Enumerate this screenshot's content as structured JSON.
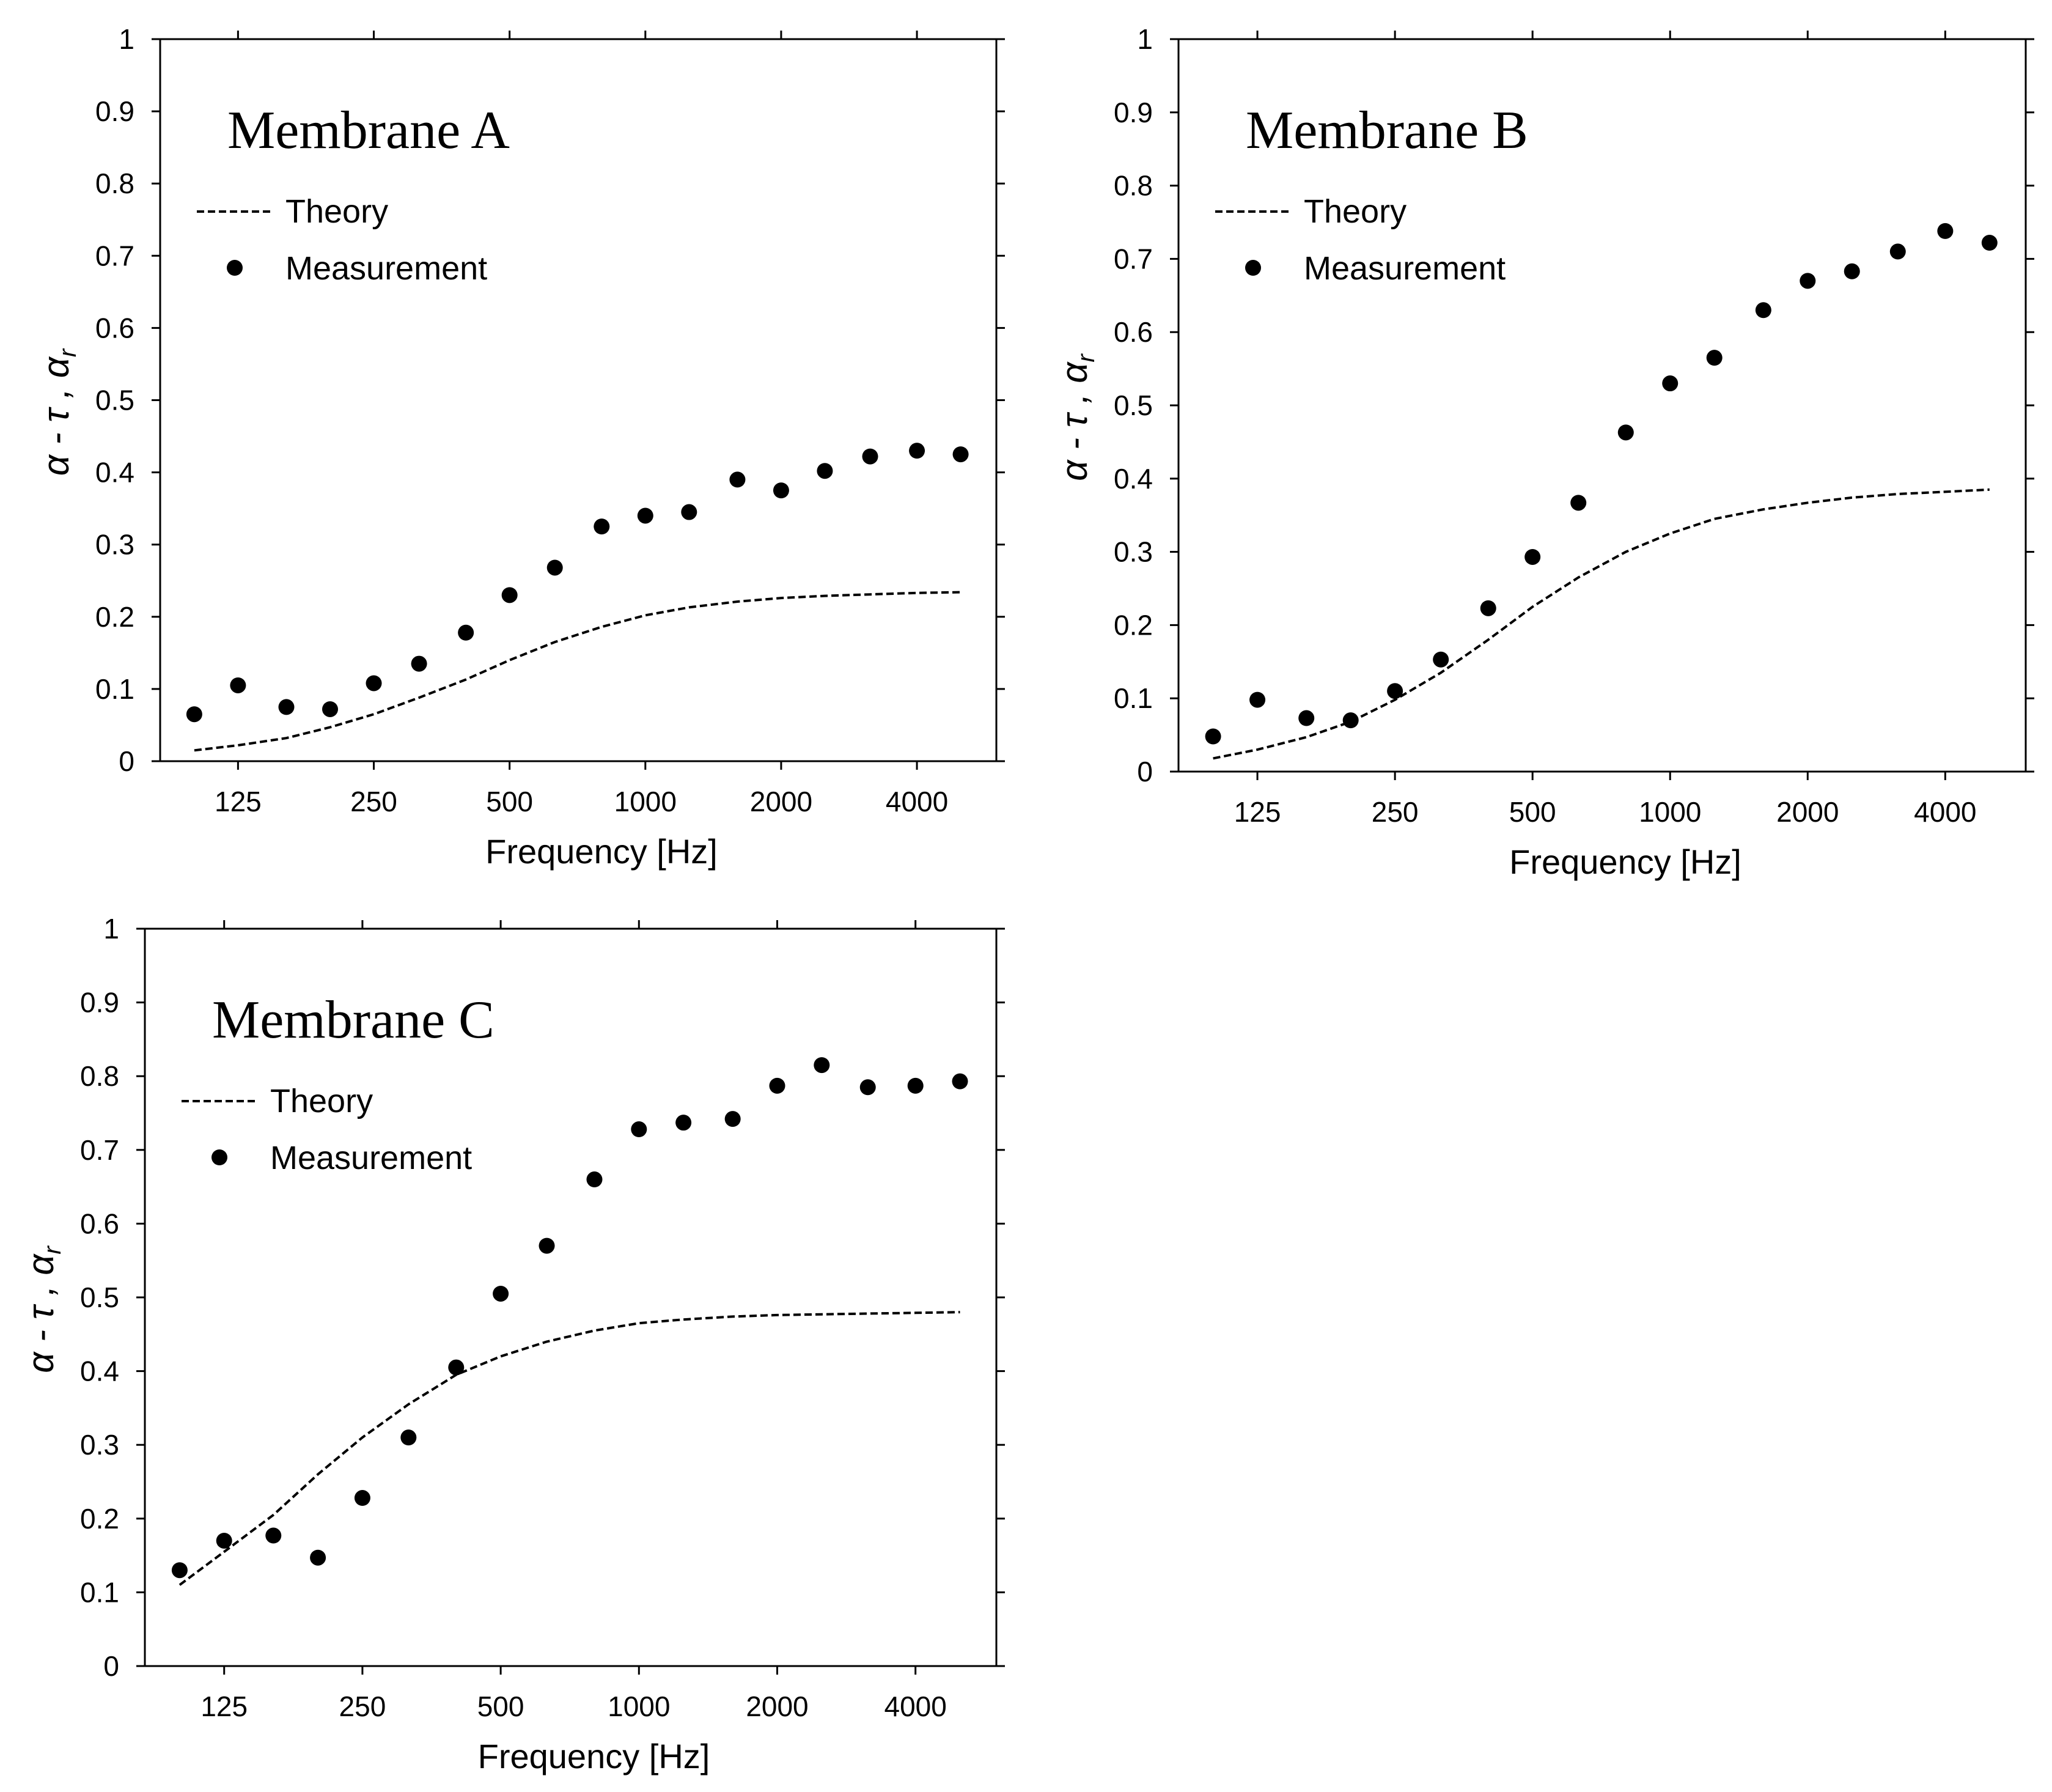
{
  "chart_data": [
    {
      "type": "scatter",
      "title": "Membrane A",
      "xlabel": "Frequency [Hz]",
      "ylabel": "α - τ , α_r",
      "x_scale": "log2",
      "x_ticks": [
        125,
        250,
        500,
        1000,
        2000,
        4000
      ],
      "x_tick_labels": [
        "125",
        "250",
        "500",
        "1000",
        "2000",
        "4000"
      ],
      "xlim": [
        84,
        6000
      ],
      "ylim": [
        0,
        1
      ],
      "y_ticks": [
        0,
        0.1,
        0.2,
        0.3,
        0.4,
        0.5,
        0.6,
        0.7,
        0.8,
        0.9,
        1
      ],
      "y_tick_labels": [
        "0",
        "0.1",
        "0.2",
        "0.3",
        "0.4",
        "0.5",
        "0.6",
        "0.7",
        "0.8",
        "0.9",
        "1"
      ],
      "legend": {
        "position": "upper-left",
        "theory_label": "Theory",
        "measurement_label": "Measurement"
      },
      "series": [
        {
          "name": "Theory",
          "style": "dashed-line",
          "x": [
            100,
            125,
            160,
            200,
            250,
            315,
            400,
            500,
            630,
            800,
            1000,
            1250,
            1600,
            2000,
            2500,
            3150,
            4000,
            5000
          ],
          "values": [
            0.015,
            0.022,
            0.032,
            0.047,
            0.065,
            0.088,
            0.113,
            0.14,
            0.165,
            0.186,
            0.202,
            0.213,
            0.221,
            0.226,
            0.229,
            0.231,
            0.233,
            0.234
          ]
        },
        {
          "name": "Measurement",
          "style": "filled-circles",
          "x": [
            100,
            125,
            160,
            200,
            250,
            315,
            400,
            500,
            630,
            800,
            1000,
            1250,
            1600,
            2000,
            2500,
            3150,
            4000,
            5000
          ],
          "values": [
            0.065,
            0.105,
            0.075,
            0.072,
            0.108,
            0.135,
            0.178,
            0.23,
            0.268,
            0.325,
            0.34,
            0.345,
            0.39,
            0.375,
            0.402,
            0.422,
            0.43,
            0.425
          ]
        }
      ]
    },
    {
      "type": "scatter",
      "title": "Membrane B",
      "xlabel": "Frequency [Hz]",
      "ylabel": "α - τ , α_r",
      "x_scale": "log2",
      "x_ticks": [
        125,
        250,
        500,
        1000,
        2000,
        4000
      ],
      "x_tick_labels": [
        "125",
        "250",
        "500",
        "1000",
        "2000",
        "4000"
      ],
      "xlim": [
        84,
        6000
      ],
      "ylim": [
        0,
        1
      ],
      "y_ticks": [
        0,
        0.1,
        0.2,
        0.3,
        0.4,
        0.5,
        0.6,
        0.7,
        0.8,
        0.9,
        1
      ],
      "y_tick_labels": [
        "0",
        "0.1",
        "0.2",
        "0.3",
        "0.4",
        "0.5",
        "0.6",
        "0.7",
        "0.8",
        "0.9",
        "1"
      ],
      "legend": {
        "position": "upper-left",
        "theory_label": "Theory",
        "measurement_label": "Measurement"
      },
      "series": [
        {
          "name": "Theory",
          "style": "dashed-line",
          "x": [
            100,
            125,
            160,
            200,
            250,
            315,
            400,
            500,
            630,
            800,
            1000,
            1250,
            1600,
            2000,
            2500,
            3150,
            4000,
            5000
          ],
          "values": [
            0.018,
            0.03,
            0.047,
            0.068,
            0.098,
            0.135,
            0.18,
            0.225,
            0.265,
            0.3,
            0.325,
            0.345,
            0.358,
            0.367,
            0.374,
            0.379,
            0.382,
            0.385
          ]
        },
        {
          "name": "Measurement",
          "style": "filled-circles",
          "x": [
            100,
            125,
            160,
            200,
            250,
            315,
            400,
            500,
            630,
            800,
            1000,
            1250,
            1600,
            2000,
            2500,
            3150,
            4000,
            5000
          ],
          "values": [
            0.048,
            0.098,
            0.073,
            0.07,
            0.11,
            0.153,
            0.223,
            0.293,
            0.367,
            0.463,
            0.53,
            0.565,
            0.63,
            0.67,
            0.683,
            0.71,
            0.738,
            0.722
          ]
        }
      ]
    },
    {
      "type": "scatter",
      "title": "Membrane C",
      "xlabel": "Frequency [Hz]",
      "ylabel": "α - τ , α_r",
      "x_scale": "log2",
      "x_ticks": [
        125,
        250,
        500,
        1000,
        2000,
        4000
      ],
      "x_tick_labels": [
        "125",
        "250",
        "500",
        "1000",
        "2000",
        "4000"
      ],
      "xlim": [
        84,
        6000
      ],
      "ylim": [
        0,
        1
      ],
      "y_ticks": [
        0,
        0.1,
        0.2,
        0.3,
        0.4,
        0.5,
        0.6,
        0.7,
        0.8,
        0.9,
        1
      ],
      "y_tick_labels": [
        "0",
        "0.1",
        "0.2",
        "0.3",
        "0.4",
        "0.5",
        "0.6",
        "0.7",
        "0.8",
        "0.9",
        "1"
      ],
      "legend": {
        "position": "upper-left",
        "theory_label": "Theory",
        "measurement_label": "Measurement"
      },
      "series": [
        {
          "name": "Theory",
          "style": "dashed-line",
          "x": [
            100,
            125,
            160,
            200,
            250,
            315,
            400,
            500,
            630,
            800,
            1000,
            1250,
            1600,
            2000,
            2500,
            3150,
            4000,
            5000
          ],
          "values": [
            0.11,
            0.155,
            0.205,
            0.26,
            0.31,
            0.355,
            0.395,
            0.42,
            0.44,
            0.455,
            0.465,
            0.47,
            0.474,
            0.476,
            0.477,
            0.478,
            0.479,
            0.48
          ]
        },
        {
          "name": "Measurement",
          "style": "filled-circles",
          "x": [
            100,
            125,
            160,
            200,
            250,
            315,
            400,
            500,
            630,
            800,
            1000,
            1250,
            1600,
            2000,
            2500,
            3150,
            4000,
            5000
          ],
          "values": [
            0.13,
            0.17,
            0.177,
            0.147,
            0.228,
            0.31,
            0.405,
            0.505,
            0.57,
            0.66,
            0.728,
            0.737,
            0.742,
            0.787,
            0.815,
            0.785,
            0.787,
            0.793
          ]
        }
      ]
    }
  ]
}
